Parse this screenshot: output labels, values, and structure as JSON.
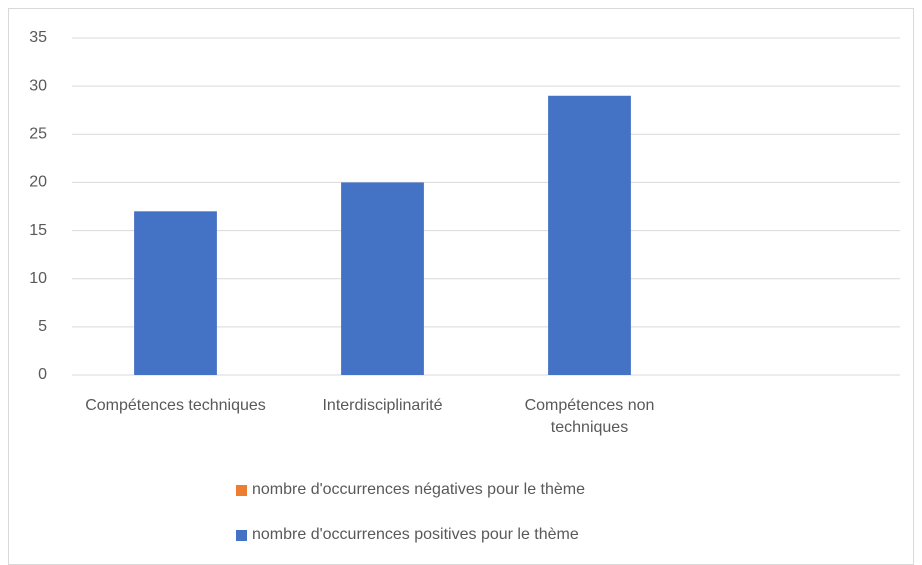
{
  "chart_data": {
    "type": "stacked_bar",
    "categories": [
      "Compétences techniques",
      "Interdisciplinarité",
      "Compétences non techniques",
      null
    ],
    "series": [
      {
        "name": "nombre d'occurrences négatives pour le thème",
        "color": "#ed7d31",
        "values": [
          0,
          0,
          0,
          null
        ]
      },
      {
        "name": "nombre d'occurrences positives pour le thème",
        "color": "#4472c4",
        "values": [
          17,
          20,
          29,
          null
        ]
      }
    ],
    "ylim": [
      0,
      35
    ],
    "yticks": [
      0,
      5,
      10,
      15,
      20,
      25,
      30,
      35
    ],
    "grid": true,
    "legend": "bottom"
  }
}
